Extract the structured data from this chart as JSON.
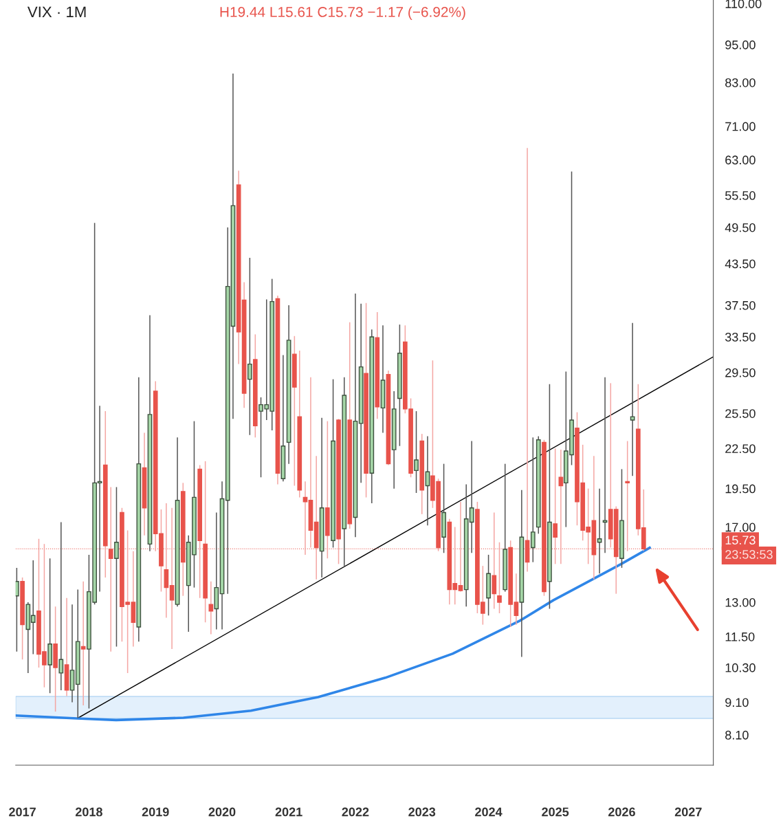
{
  "chart_data": {
    "type": "candlestick",
    "title": "VIX · 1M",
    "annotations": [
      "H19.44 L15.61 C15.73 −1.17 (−6.92%)",
      "23:53:53"
    ],
    "log": "y",
    "grid": false,
    "legend": false,
    "ylim": [
      7.27,
      111.4
    ],
    "yticks": [
      {
        "value": 8.1,
        "label": "8.10"
      },
      {
        "value": 9.1,
        "label": "9.10"
      },
      {
        "value": 10.3,
        "label": "10.30"
      },
      {
        "value": 11.5,
        "label": "11.50"
      },
      {
        "value": 13,
        "label": "13.00"
      },
      {
        "value": 17,
        "label": "17.00"
      },
      {
        "value": 19.5,
        "label": "19.50"
      },
      {
        "value": 22.5,
        "label": "22.50"
      },
      {
        "value": 25.5,
        "label": "25.50"
      },
      {
        "value": 29.5,
        "label": "29.50"
      },
      {
        "value": 33.5,
        "label": "33.50"
      },
      {
        "value": 37.5,
        "label": "37.50"
      },
      {
        "value": 43.5,
        "label": "43.50"
      },
      {
        "value": 49.5,
        "label": "49.50"
      },
      {
        "value": 55.5,
        "label": "55.50"
      },
      {
        "value": 63,
        "label": "63.00"
      },
      {
        "value": 71,
        "label": "71.00"
      },
      {
        "value": 83,
        "label": "83.00"
      },
      {
        "value": 95,
        "label": "95.00"
      },
      {
        "value": 110,
        "label": "110.00"
      }
    ],
    "xlim": [
      "2016-11-25",
      "2027-05-18"
    ],
    "xticks": [
      "2017",
      "2018",
      "2019",
      "2020",
      "2021",
      "2022",
      "2023",
      "2024",
      "2025",
      "2026",
      "2027"
    ],
    "x": [
      "2016-12",
      "2017-01",
      "2017-02",
      "2017-03",
      "2017-04",
      "2017-05",
      "2017-06",
      "2017-07",
      "2017-08",
      "2017-09",
      "2017-10",
      "2017-11",
      "2017-12",
      "2018-01",
      "2018-02",
      "2018-03",
      "2018-04",
      "2018-05",
      "2018-06",
      "2018-07",
      "2018-08",
      "2018-09",
      "2018-10",
      "2018-11",
      "2018-12",
      "2019-01",
      "2019-02",
      "2019-03",
      "2019-04",
      "2019-05",
      "2019-06",
      "2019-07",
      "2019-08",
      "2019-09",
      "2019-10",
      "2019-11",
      "2019-12",
      "2020-01",
      "2020-02",
      "2020-03",
      "2020-04",
      "2020-05",
      "2020-06",
      "2020-07",
      "2020-08",
      "2020-09",
      "2020-10",
      "2020-11",
      "2020-12",
      "2021-01",
      "2021-02",
      "2021-03",
      "2021-04",
      "2021-05",
      "2021-06",
      "2021-07",
      "2021-08",
      "2021-09",
      "2021-10",
      "2021-11",
      "2021-12",
      "2022-01",
      "2022-02",
      "2022-03",
      "2022-04",
      "2022-05",
      "2022-06",
      "2022-07",
      "2022-08",
      "2022-09",
      "2022-10",
      "2022-11",
      "2022-12",
      "2023-01",
      "2023-02",
      "2023-03",
      "2023-04",
      "2023-05",
      "2023-06",
      "2023-07",
      "2023-08",
      "2023-09",
      "2023-10",
      "2023-11",
      "2023-12",
      "2024-01",
      "2024-02",
      "2024-03",
      "2024-04",
      "2024-05",
      "2024-06",
      "2024-07",
      "2024-08",
      "2024-09",
      "2024-10",
      "2024-11",
      "2024-12",
      "2025-01",
      "2025-02",
      "2025-03",
      "2025-04",
      "2025-05",
      "2025-06",
      "2025-07",
      "2025-08",
      "2025-09",
      "2025-10",
      "2025-11",
      "2025-12",
      "2026-01",
      "2026-02",
      "2026-03",
      "2026-04",
      "2026-05"
    ],
    "ohlc": [
      [
        13.3,
        14.7,
        10.9,
        14.0
      ],
      [
        14.0,
        14.2,
        10.6,
        12.0
      ],
      [
        11.8,
        13.0,
        10.1,
        12.9
      ],
      [
        12.1,
        15.1,
        10.8,
        12.4
      ],
      [
        12.6,
        16.3,
        10.3,
        10.8
      ],
      [
        10.9,
        16.0,
        9.6,
        10.4
      ],
      [
        10.4,
        15.2,
        9.4,
        11.2
      ],
      [
        11.2,
        12.8,
        8.8,
        10.3
      ],
      [
        10.1,
        17.3,
        9.5,
        10.6
      ],
      [
        10.4,
        13.2,
        9.3,
        9.5
      ],
      [
        9.5,
        12.9,
        9.1,
        10.2
      ],
      [
        9.7,
        13.6,
        8.6,
        11.3
      ],
      [
        11.1,
        14.0,
        9.0,
        11.0
      ],
      [
        11.0,
        15.4,
        8.9,
        13.5
      ],
      [
        13.0,
        50.3,
        12.9,
        19.9
      ],
      [
        19.9,
        26.2,
        13.5,
        20.0
      ],
      [
        21.2,
        25.7,
        14.2,
        15.9
      ],
      [
        15.7,
        19.6,
        10.9,
        15.2
      ],
      [
        15.2,
        19.6,
        11.1,
        16.1
      ],
      [
        17.9,
        18.2,
        11.3,
        12.8
      ],
      [
        13.0,
        16.8,
        10.1,
        12.9
      ],
      [
        13.0,
        15.6,
        11.1,
        12.1
      ],
      [
        11.9,
        29.0,
        11.3,
        21.3
      ],
      [
        21.0,
        23.8,
        16.5,
        18.2
      ],
      [
        16.0,
        36.2,
        15.6,
        25.4
      ],
      [
        27.6,
        28.6,
        15.6,
        16.6
      ],
      [
        16.6,
        18.1,
        13.5,
        14.8
      ],
      [
        14.6,
        18.5,
        12.3,
        13.7
      ],
      [
        13.8,
        18.2,
        11.0,
        13.1
      ],
      [
        12.9,
        23.4,
        12.8,
        18.7
      ],
      [
        19.3,
        19.9,
        13.3,
        15.0
      ],
      [
        13.8,
        16.5,
        11.7,
        16.1
      ],
      [
        15.4,
        24.8,
        13.7,
        18.9
      ],
      [
        20.9,
        21.2,
        13.2,
        16.2
      ],
      [
        16.0,
        21.5,
        12.1,
        13.2
      ],
      [
        12.9,
        14.0,
        11.6,
        12.6
      ],
      [
        12.7,
        17.9,
        11.8,
        13.7
      ],
      [
        13.4,
        20.0,
        11.8,
        18.8
      ],
      [
        18.7,
        49.5,
        13.4,
        40.1
      ],
      [
        34.8,
        85.7,
        25.0,
        53.5
      ],
      [
        57.6,
        60.6,
        30.4,
        34.1
      ],
      [
        38.2,
        40.7,
        26.0,
        27.4
      ],
      [
        28.8,
        44.4,
        23.6,
        30.4
      ],
      [
        30.9,
        33.8,
        23.4,
        24.4
      ],
      [
        25.7,
        27.0,
        20.3,
        26.3
      ],
      [
        25.9,
        38.3,
        24.9,
        26.3
      ],
      [
        25.7,
        41.2,
        24.0,
        38.0
      ],
      [
        38.4,
        38.8,
        19.8,
        20.6
      ],
      [
        20.2,
        31.4,
        20.0,
        22.7
      ],
      [
        23.0,
        37.5,
        21.3,
        33.1
      ],
      [
        31.5,
        33.6,
        19.7,
        28.0
      ],
      [
        25.2,
        31.9,
        18.9,
        19.4
      ],
      [
        18.9,
        20.0,
        15.4,
        18.6
      ],
      [
        18.7,
        29.0,
        15.8,
        16.8
      ],
      [
        17.3,
        21.9,
        14.1,
        15.8
      ],
      [
        15.6,
        25.1,
        14.2,
        18.2
      ],
      [
        18.2,
        24.8,
        15.2,
        16.5
      ],
      [
        16.2,
        28.8,
        15.8,
        23.1
      ],
      [
        24.9,
        25.0,
        14.9,
        16.3
      ],
      [
        16.9,
        29.0,
        14.8,
        27.2
      ],
      [
        24.9,
        35.3,
        16.9,
        17.2
      ],
      [
        17.6,
        39.1,
        16.4,
        24.8
      ],
      [
        24.6,
        37.7,
        19.9,
        30.1
      ],
      [
        29.4,
        37.8,
        18.9,
        20.6
      ],
      [
        20.6,
        34.4,
        18.5,
        33.5
      ],
      [
        33.4,
        36.6,
        25.0,
        26.1
      ],
      [
        26.0,
        34.9,
        23.8,
        28.7
      ],
      [
        29.3,
        29.7,
        21.2,
        21.3
      ],
      [
        22.4,
        27.6,
        19.5,
        25.9
      ],
      [
        26.9,
        35.0,
        22.7,
        31.6
      ],
      [
        32.9,
        34.9,
        25.5,
        25.9
      ],
      [
        25.9,
        26.9,
        20.3,
        20.6
      ],
      [
        20.8,
        25.7,
        19.2,
        21.6
      ],
      [
        23.1,
        23.7,
        17.8,
        19.4
      ],
      [
        19.7,
        23.5,
        17.1,
        20.7
      ],
      [
        20.4,
        30.8,
        18.2,
        18.7
      ],
      [
        20.0,
        20.2,
        15.6,
        15.8
      ],
      [
        16.4,
        21.3,
        15.5,
        17.9
      ],
      [
        17.3,
        17.5,
        12.9,
        13.6
      ],
      [
        13.9,
        17.0,
        12.9,
        13.6
      ],
      [
        13.8,
        18.6,
        13.5,
        13.55
      ],
      [
        13.6,
        19.8,
        12.8,
        17.5
      ],
      [
        17.3,
        23.1,
        15.5,
        18.2
      ],
      [
        18.1,
        18.6,
        12.5,
        12.9
      ],
      [
        13.0,
        14.8,
        12.0,
        12.5
      ],
      [
        13.2,
        15.4,
        12.4,
        14.4
      ],
      [
        14.3,
        17.9,
        12.7,
        13.4
      ],
      [
        13.3,
        16.1,
        12.5,
        13.0
      ],
      [
        13.6,
        21.3,
        13.5,
        15.7
      ],
      [
        15.8,
        16.2,
        11.9,
        12.9
      ],
      [
        13.0,
        14.4,
        12.0,
        12.4
      ],
      [
        13.0,
        19.4,
        10.7,
        16.4
      ],
      [
        16.2,
        65.7,
        14.5,
        15.0
      ],
      [
        15.8,
        23.4,
        15.0,
        16.7
      ],
      [
        17.0,
        23.5,
        16.6,
        23.2
      ],
      [
        23.0,
        23.2,
        13.3,
        13.5
      ],
      [
        14.0,
        28.3,
        12.7,
        17.3
      ],
      [
        17.2,
        22.5,
        14.9,
        16.4
      ],
      [
        20.3,
        22.4,
        14.9,
        19.7
      ],
      [
        19.9,
        29.6,
        17.0,
        22.3
      ],
      [
        22.0,
        60.4,
        21.2,
        24.9
      ],
      [
        24.2,
        25.6,
        17.1,
        18.6
      ],
      [
        19.9,
        22.8,
        16.2,
        16.8
      ],
      [
        17.0,
        19.5,
        14.9,
        16.7
      ],
      [
        17.4,
        21.9,
        14.1,
        15.4
      ],
      [
        16.1,
        19.5,
        14.4,
        16.3
      ],
      [
        17.3,
        29.0,
        15.5,
        17.4
      ],
      [
        18.1,
        28.4,
        15.8,
        16.3
      ],
      [
        18.1,
        18.3,
        13.4,
        15.3
      ],
      [
        15.2,
        20.9,
        14.7,
        17.4
      ],
      [
        20.0,
        23.1,
        15.6,
        19.9
      ],
      [
        24.9,
        35.2,
        20.4,
        25.2
      ],
      [
        24.1,
        28.3,
        16.5,
        16.9
      ],
      [
        16.95,
        19.44,
        15.61,
        15.73
      ]
    ],
    "series": [
      {
        "type": "line",
        "color": "#000000",
        "x": [
          "2017-10-29",
          "2027-05-18"
        ],
        "values": [
          8.59,
          31.2
        ]
      },
      {
        "type": "line",
        "color": "#2f86e8",
        "x": [
          "2016-11-25",
          "2017-10-29",
          "2018-05-30",
          "2019-06-03",
          "2020-06-07",
          "2021-06-10",
          "2022-06-14",
          "2023-06-18",
          "2024-06-21",
          "2024-12-23",
          "2025-06-25",
          "2025-12-27",
          "2026-06-03"
        ],
        "values": [
          8.68,
          8.59,
          8.54,
          8.61,
          8.83,
          9.27,
          9.93,
          10.82,
          12.17,
          13.1,
          13.96,
          14.89,
          15.79
        ]
      }
    ],
    "bands": [
      {
        "axis": "y",
        "from": 8.59,
        "to": 9.29,
        "color": "#e3f0fc"
      }
    ],
    "ref_lines": [
      {
        "axis": "y",
        "value": 15.73,
        "label": "15.73",
        "color": "#e8534b",
        "line_style": "dotted"
      }
    ]
  }
}
